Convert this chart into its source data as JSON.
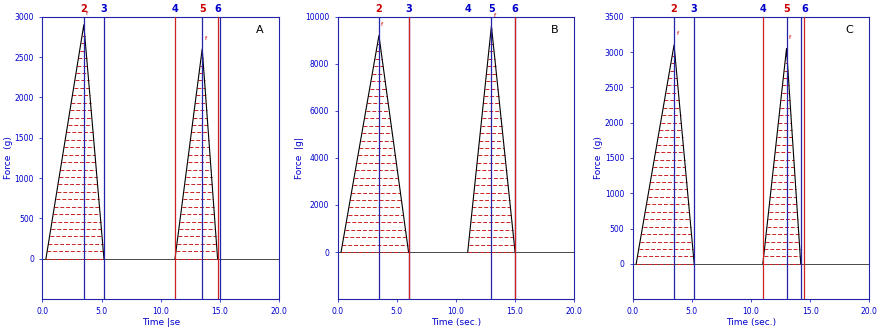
{
  "panels": [
    {
      "label": "A",
      "ylabel": "Force  (g)",
      "xlabel": "Time |se",
      "ylim": [
        -500,
        3000
      ],
      "yticks": [
        0,
        500,
        1000,
        1500,
        2000,
        2500,
        3000
      ],
      "xlim": [
        0,
        20
      ],
      "xticks": [
        0.0,
        5.0,
        10.0,
        15.0,
        20.0
      ],
      "xtick_labels": [
        "0.0",
        "5.0",
        "10.0",
        "15.0",
        "20.0"
      ],
      "peak1": {
        "x_start": 0.3,
        "x_peak": 3.5,
        "x_end": 5.2,
        "y_peak": 2900
      },
      "peak2": {
        "x_start": 11.2,
        "x_peak": 13.5,
        "x_end": 14.8,
        "y_peak": 2600
      },
      "vlines_blue": [
        3.5,
        5.2,
        13.5,
        15.0
      ],
      "vlines_red": [
        11.2,
        14.8
      ],
      "marker_labels": [
        "2",
        "3",
        "4",
        "5",
        "6"
      ],
      "marker_x": [
        3.5,
        5.2,
        11.2,
        13.5,
        14.8
      ],
      "marker_colors": [
        "red",
        "blue",
        "blue",
        "red",
        "blue"
      ]
    },
    {
      "label": "B",
      "ylabel": "Force  |g|",
      "xlabel": "Time (sec.)",
      "ylim": [
        -2000,
        10000
      ],
      "yticks": [
        0,
        2000,
        4000,
        6000,
        8000,
        10000
      ],
      "xlim": [
        0,
        20
      ],
      "xticks": [
        0.0,
        5.0,
        10.0,
        15.0,
        20.0
      ],
      "xtick_labels": [
        "0.0",
        "5.0",
        "10.0",
        "15.0",
        "20.0"
      ],
      "peak1": {
        "x_start": 0.3,
        "x_peak": 3.5,
        "x_end": 6.0,
        "y_peak": 9200
      },
      "peak2": {
        "x_start": 11.0,
        "x_peak": 13.0,
        "x_end": 15.0,
        "y_peak": 9600
      },
      "vlines_blue": [
        3.5,
        6.0,
        13.0,
        15.0
      ],
      "vlines_red": [
        6.0,
        15.0
      ],
      "marker_labels": [
        "2",
        "3",
        "4",
        "5",
        "6"
      ],
      "marker_x": [
        3.5,
        6.0,
        11.0,
        13.0,
        15.0
      ],
      "marker_colors": [
        "red",
        "blue",
        "blue",
        "blue",
        "blue"
      ]
    },
    {
      "label": "C",
      "ylabel": "Force  (g)",
      "xlabel": "Time (sec.)",
      "ylim": [
        -500,
        3500
      ],
      "yticks": [
        0,
        500,
        1000,
        1500,
        2000,
        2500,
        3000,
        3500
      ],
      "xlim": [
        0,
        20
      ],
      "xticks": [
        0.0,
        5.0,
        10.0,
        15.0,
        20.0
      ],
      "xtick_labels": [
        "0.0",
        "5.0",
        "10.0",
        "15.0",
        "20.0"
      ],
      "peak1": {
        "x_start": 0.3,
        "x_peak": 3.5,
        "x_end": 5.2,
        "y_peak": 3100
      },
      "peak2": {
        "x_start": 11.0,
        "x_peak": 13.0,
        "x_end": 14.2,
        "y_peak": 3050
      },
      "vlines_blue": [
        3.5,
        5.2,
        13.0,
        14.2
      ],
      "vlines_red": [
        11.0,
        14.5
      ],
      "marker_labels": [
        "2",
        "3",
        "4",
        "5",
        "6"
      ],
      "marker_x": [
        3.5,
        5.2,
        11.0,
        13.0,
        14.5
      ],
      "marker_colors": [
        "red",
        "blue",
        "blue",
        "red",
        "blue"
      ]
    }
  ],
  "text_color_blue": "#0000CC",
  "text_color_red": "#CC0000",
  "line_color_blue": "#2222AA",
  "line_color_red": "#CC2222",
  "fill_edge_color": "#CC2222",
  "bg_color": "#FFFFFF"
}
